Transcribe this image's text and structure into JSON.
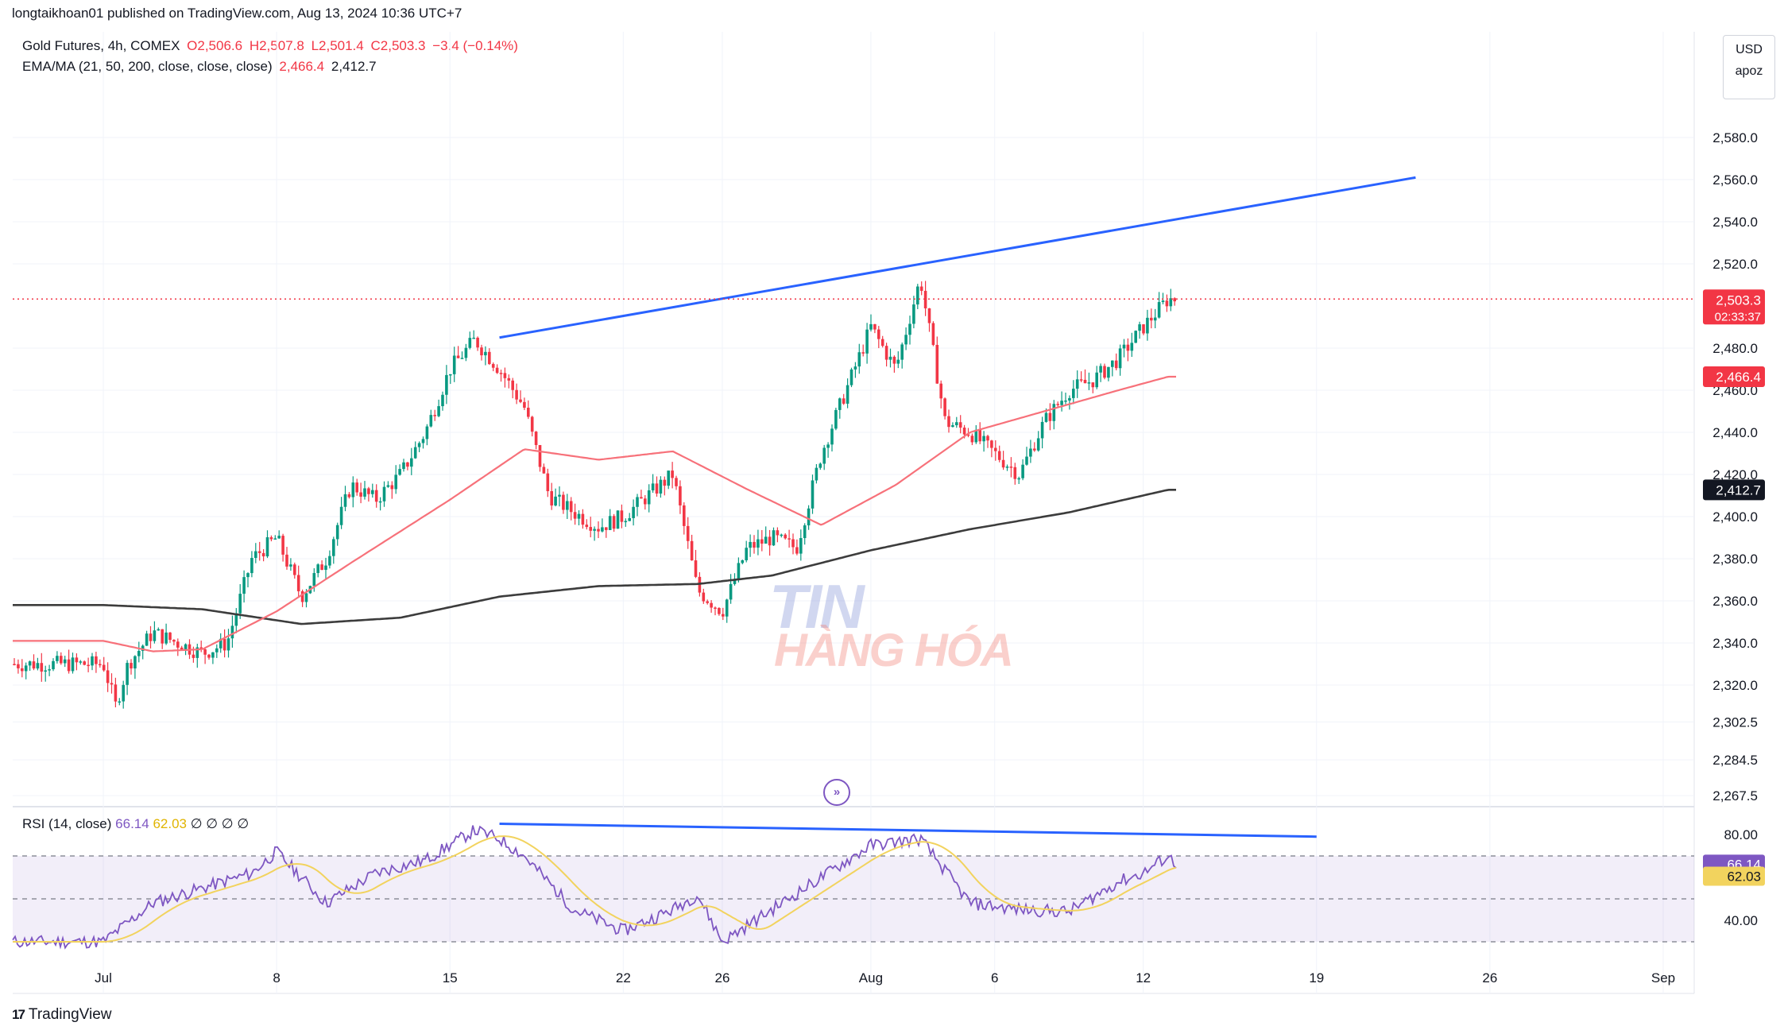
{
  "header": {
    "publisher": "longtaikhoan01 published on TradingView.com, Aug 13, 2024 10:36 UTC+7"
  },
  "legend": {
    "symbol": "Gold Futures, 4h, COMEX",
    "open": "O2,506.6",
    "high": "H2,507.8",
    "low": "L2,501.4",
    "close": "C2,503.3",
    "change": "−3.4 (−0.14%)",
    "ema_label": "EMA/MA (21, 50, 200, close, close, close)",
    "ema_value": "2,466.4",
    "ma_value": "2,412.7"
  },
  "rsi_legend": {
    "label": "RSI (14, close)",
    "rsi": "66.14",
    "ma": "62.03",
    "extra": "∅ ∅ ∅ ∅"
  },
  "currency": {
    "unit": "USD",
    "mode": "apoz"
  },
  "price_axis": {
    "ticks": [
      "2,580.0",
      "2,560.0",
      "2,540.0",
      "2,520.0",
      "2,480.0",
      "2,460.0",
      "2,440.0",
      "2,420.0",
      "2,400.0",
      "2,380.0",
      "2,360.0",
      "2,340.0",
      "2,320.0",
      "2,302.5",
      "2,284.5",
      "2,267.5"
    ],
    "current_price": "2,503.3",
    "countdown": "02:33:37",
    "ema_tag": "2,466.4",
    "ma_tag": "2,412.7"
  },
  "rsi_axis": {
    "ticks": [
      "80.00",
      "40.00"
    ],
    "rsi_tag": "66.14",
    "ma_tag": "62.03"
  },
  "time_axis": {
    "labels": [
      "Jul",
      "8",
      "15",
      "22",
      "26",
      "Aug",
      "6",
      "12",
      "19",
      "26",
      "Sep"
    ]
  },
  "watermark": {
    "line1": "TIN",
    "line2": "HÀNG HÓA"
  },
  "footer": {
    "brand": "TradingView"
  },
  "colors": {
    "up": "#089981",
    "down": "#f23645",
    "ema": "#f7717a",
    "ma200": "#3c3c3c",
    "trendline": "#2962ff",
    "rsi": "#7e57c2",
    "rsi_ma": "#f2d35e"
  },
  "chart_data": {
    "type": "candlestick",
    "timeframe": "4h",
    "x_start": "2024-07-01",
    "x_end": "2024-09-02",
    "ylim": [
      2267.5,
      2595
    ],
    "price_series_anchors": [
      [
        "2024-07-01",
        2330
      ],
      [
        "2024-07-01T12",
        2310
      ],
      [
        "2024-07-02",
        2330
      ],
      [
        "2024-07-03",
        2345
      ],
      [
        "2024-07-04",
        2340
      ],
      [
        "2024-07-05",
        2335
      ],
      [
        "2024-07-06",
        2340
      ],
      [
        "2024-07-07",
        2380
      ],
      [
        "2024-07-08",
        2390
      ],
      [
        "2024-07-09",
        2362
      ],
      [
        "2024-07-10",
        2380
      ],
      [
        "2024-07-11",
        2415
      ],
      [
        "2024-07-12",
        2408
      ],
      [
        "2024-07-13",
        2420
      ],
      [
        "2024-07-14",
        2440
      ],
      [
        "2024-07-15",
        2470
      ],
      [
        "2024-07-16",
        2484
      ],
      [
        "2024-07-17",
        2470
      ],
      [
        "2024-07-18",
        2452
      ],
      [
        "2024-07-19",
        2410
      ],
      [
        "2024-07-20",
        2402
      ],
      [
        "2024-07-21",
        2395
      ],
      [
        "2024-07-22",
        2400
      ],
      [
        "2024-07-23",
        2410
      ],
      [
        "2024-07-24",
        2420
      ],
      [
        "2024-07-25",
        2365
      ],
      [
        "2024-07-26",
        2355
      ],
      [
        "2024-07-27",
        2385
      ],
      [
        "2024-07-28",
        2390
      ],
      [
        "2024-07-29",
        2385
      ],
      [
        "2024-07-30",
        2430
      ],
      [
        "2024-07-31",
        2460
      ],
      [
        "2024-08-01",
        2490
      ],
      [
        "2024-08-02",
        2470
      ],
      [
        "2024-08-03",
        2513
      ],
      [
        "2024-08-04",
        2445
      ],
      [
        "2024-08-05",
        2440
      ],
      [
        "2024-08-06",
        2430
      ],
      [
        "2024-08-07",
        2420
      ],
      [
        "2024-08-08",
        2445
      ],
      [
        "2024-08-09",
        2460
      ],
      [
        "2024-08-10",
        2465
      ],
      [
        "2024-08-11",
        2475
      ],
      [
        "2024-08-12",
        2490
      ],
      [
        "2024-08-13",
        2503.3
      ]
    ],
    "ema_anchors": [
      [
        "2024-07-01",
        2341
      ],
      [
        "2024-07-03",
        2336
      ],
      [
        "2024-07-05",
        2337
      ],
      [
        "2024-07-08",
        2355
      ],
      [
        "2024-07-11",
        2378
      ],
      [
        "2024-07-15",
        2408
      ],
      [
        "2024-07-18",
        2432
      ],
      [
        "2024-07-21",
        2427
      ],
      [
        "2024-07-24",
        2431
      ],
      [
        "2024-07-27",
        2413
      ],
      [
        "2024-07-30",
        2396
      ],
      [
        "2024-08-02",
        2415
      ],
      [
        "2024-08-05",
        2440
      ],
      [
        "2024-08-08",
        2450
      ],
      [
        "2024-08-11",
        2460
      ],
      [
        "2024-08-13",
        2466.4
      ]
    ],
    "ma200_anchors": [
      [
        "2024-07-01",
        2358
      ],
      [
        "2024-07-05",
        2356
      ],
      [
        "2024-07-09",
        2349
      ],
      [
        "2024-07-13",
        2352
      ],
      [
        "2024-07-17",
        2362
      ],
      [
        "2024-07-21",
        2367
      ],
      [
        "2024-07-25",
        2368
      ],
      [
        "2024-07-28",
        2372
      ],
      [
        "2024-08-01",
        2384
      ],
      [
        "2024-08-05",
        2394
      ],
      [
        "2024-08-09",
        2402
      ],
      [
        "2024-08-13",
        2412.7
      ]
    ],
    "trendlines": [
      {
        "from": [
          "2024-07-17",
          2485
        ],
        "to": [
          "2024-08-23",
          2561
        ]
      }
    ],
    "last_price": 2503.3,
    "rsi": {
      "ylim": [
        25,
        90
      ],
      "bands": [
        70,
        50,
        30
      ],
      "current": 66.14,
      "ma_current": 62.03,
      "rsi_anchors": [
        [
          "2024-07-01",
          30
        ],
        [
          "2024-07-03",
          48
        ],
        [
          "2024-07-05",
          55
        ],
        [
          "2024-07-07",
          62
        ],
        [
          "2024-07-08",
          72
        ],
        [
          "2024-07-10",
          48
        ],
        [
          "2024-07-12",
          62
        ],
        [
          "2024-07-14",
          68
        ],
        [
          "2024-07-16",
          82
        ],
        [
          "2024-07-17",
          78
        ],
        [
          "2024-07-18",
          70
        ],
        [
          "2024-07-20",
          45
        ],
        [
          "2024-07-22",
          35
        ],
        [
          "2024-07-24",
          45
        ],
        [
          "2024-07-25",
          52
        ],
        [
          "2024-07-26",
          30
        ],
        [
          "2024-07-28",
          45
        ],
        [
          "2024-07-30",
          60
        ],
        [
          "2024-08-01",
          75
        ],
        [
          "2024-08-03",
          78
        ],
        [
          "2024-08-05",
          48
        ],
        [
          "2024-08-07",
          45
        ],
        [
          "2024-08-09",
          44
        ],
        [
          "2024-08-11",
          58
        ],
        [
          "2024-08-12",
          62
        ],
        [
          "2024-08-13",
          70
        ],
        [
          "2024-08-13T08",
          66.14
        ]
      ],
      "trendline": {
        "from": [
          "2024-07-17",
          85
        ],
        "to": [
          "2024-08-19",
          79
        ]
      }
    }
  }
}
